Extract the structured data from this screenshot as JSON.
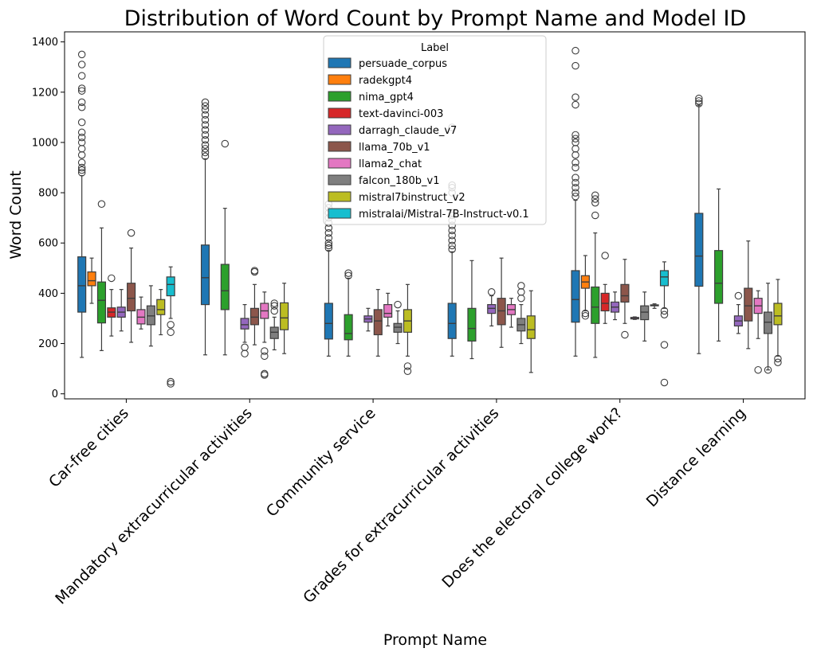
{
  "chart_data": {
    "type": "boxplot",
    "title": "Distribution of Word Count by Prompt Name and Model ID",
    "xlabel": "Prompt Name",
    "ylabel": "Word Count",
    "ylim": [
      -20,
      1440
    ],
    "yticks": [
      0,
      200,
      400,
      600,
      800,
      1000,
      1200,
      1400
    ],
    "categories": [
      "Car-free cities",
      "Mandatory extracurricular activities",
      "Community service",
      "Grades for extracurricular activities",
      "Does the electoral college work?",
      "Distance learning"
    ],
    "legend": {
      "title": "Label",
      "position": "upper-center",
      "entries": [
        {
          "name": "persuade_corpus",
          "color": "#1f77b4",
          "edge": "#114a7a"
        },
        {
          "name": "radekgpt4",
          "color": "#ff7f0e",
          "edge": "#8a4306"
        },
        {
          "name": "nima_gpt4",
          "color": "#2ca02c",
          "edge": "#175a17"
        },
        {
          "name": "text-davinci-003",
          "color": "#d62728",
          "edge": "#7a1414"
        },
        {
          "name": "darragh_claude_v7",
          "color": "#9467bd",
          "edge": "#4e3569"
        },
        {
          "name": "llama_70b_v1",
          "color": "#8c564b",
          "edge": "#4a2c26"
        },
        {
          "name": "llama2_chat",
          "color": "#e377c2",
          "edge": "#7d3f6a"
        },
        {
          "name": "falcon_180b_v1",
          "color": "#7f7f7f",
          "edge": "#454545"
        },
        {
          "name": "mistral7binstruct_v2",
          "color": "#bcbd22",
          "edge": "#646512"
        },
        {
          "name": "mistralai/Mistral-7B-Instruct-v0.1",
          "color": "#17becf",
          "edge": "#0c6670"
        }
      ]
    },
    "boxes": [
      {
        "category": 0,
        "series": 0,
        "min": 145,
        "q1": 325,
        "median": 430,
        "q3": 545,
        "max": 868,
        "outliers": [
          880,
          890,
          900,
          920,
          950,
          975,
          1000,
          1020,
          1040,
          1080,
          1140,
          1160,
          1205,
          1215,
          1265,
          1310,
          1350
        ]
      },
      {
        "category": 0,
        "series": 1,
        "min": 360,
        "q1": 430,
        "median": 450,
        "q3": 485,
        "max": 540,
        "outliers": []
      },
      {
        "category": 0,
        "series": 2,
        "min": 172,
        "q1": 282,
        "median": 372,
        "q3": 445,
        "max": 660,
        "outliers": [
          755
        ]
      },
      {
        "category": 0,
        "series": 3,
        "min": 230,
        "q1": 305,
        "median": 325,
        "q3": 342,
        "max": 415,
        "outliers": [
          460
        ]
      },
      {
        "category": 0,
        "series": 4,
        "min": 250,
        "q1": 305,
        "median": 325,
        "q3": 345,
        "max": 415,
        "outliers": []
      },
      {
        "category": 0,
        "series": 5,
        "min": 205,
        "q1": 330,
        "median": 380,
        "q3": 440,
        "max": 580,
        "outliers": [
          640
        ]
      },
      {
        "category": 0,
        "series": 6,
        "min": 258,
        "q1": 278,
        "median": 305,
        "q3": 335,
        "max": 385,
        "outliers": []
      },
      {
        "category": 0,
        "series": 7,
        "min": 190,
        "q1": 275,
        "median": 310,
        "q3": 350,
        "max": 430,
        "outliers": []
      },
      {
        "category": 0,
        "series": 8,
        "min": 235,
        "q1": 315,
        "median": 335,
        "q3": 375,
        "max": 415,
        "outliers": []
      },
      {
        "category": 0,
        "series": 9,
        "min": 300,
        "q1": 390,
        "median": 435,
        "q3": 465,
        "max": 505,
        "outliers": [
          245,
          275,
          40,
          48
        ]
      },
      {
        "category": 1,
        "series": 0,
        "min": 155,
        "q1": 355,
        "median": 462,
        "q3": 592,
        "max": 935,
        "outliers": [
          945,
          960,
          975,
          990,
          1010,
          1030,
          1050,
          1070,
          1090,
          1110,
          1130,
          1145,
          1160
        ]
      },
      {
        "category": 1,
        "series": 2,
        "min": 155,
        "q1": 335,
        "median": 410,
        "q3": 515,
        "max": 738,
        "outliers": [
          995
        ]
      },
      {
        "category": 1,
        "series": 4,
        "min": 205,
        "q1": 258,
        "median": 275,
        "q3": 300,
        "max": 355,
        "outliers": [
          160,
          185
        ]
      },
      {
        "category": 1,
        "series": 5,
        "min": 195,
        "q1": 275,
        "median": 305,
        "q3": 340,
        "max": 435,
        "outliers": [
          490,
          485
        ]
      },
      {
        "category": 1,
        "series": 6,
        "min": 205,
        "q1": 300,
        "median": 330,
        "q3": 360,
        "max": 405,
        "outliers": [
          150,
          170,
          80,
          75
        ]
      },
      {
        "category": 1,
        "series": 7,
        "min": 175,
        "q1": 220,
        "median": 245,
        "q3": 265,
        "max": 305,
        "outliers": [
          330,
          350,
          360
        ]
      },
      {
        "category": 1,
        "series": 8,
        "min": 160,
        "q1": 255,
        "median": 302,
        "q3": 362,
        "max": 440,
        "outliers": []
      },
      {
        "category": 2,
        "series": 0,
        "min": 150,
        "q1": 218,
        "median": 280,
        "q3": 360,
        "max": 570,
        "outliers": [
          580,
          590,
          600,
          620,
          640,
          660,
          680,
          700,
          720,
          740,
          755
        ]
      },
      {
        "category": 2,
        "series": 2,
        "min": 150,
        "q1": 215,
        "median": 240,
        "q3": 315,
        "max": 460,
        "outliers": [
          470,
          480
        ]
      },
      {
        "category": 2,
        "series": 4,
        "min": 250,
        "q1": 285,
        "median": 298,
        "q3": 310,
        "max": 340,
        "outliers": []
      },
      {
        "category": 2,
        "series": 5,
        "min": 150,
        "q1": 235,
        "median": 290,
        "q3": 335,
        "max": 415,
        "outliers": []
      },
      {
        "category": 2,
        "series": 6,
        "min": 270,
        "q1": 305,
        "median": 320,
        "q3": 355,
        "max": 400,
        "outliers": []
      },
      {
        "category": 2,
        "series": 7,
        "min": 200,
        "q1": 245,
        "median": 265,
        "q3": 280,
        "max": 330,
        "outliers": [
          355
        ]
      },
      {
        "category": 2,
        "series": 8,
        "min": 150,
        "q1": 245,
        "median": 290,
        "q3": 335,
        "max": 435,
        "outliers": [
          110,
          90
        ]
      },
      {
        "category": 3,
        "series": 0,
        "min": 150,
        "q1": 220,
        "median": 280,
        "q3": 360,
        "max": 565,
        "outliers": [
          575,
          590,
          610,
          630,
          650,
          670,
          690,
          710,
          720,
          800,
          820,
          830,
          1060
        ]
      },
      {
        "category": 3,
        "series": 2,
        "min": 140,
        "q1": 210,
        "median": 260,
        "q3": 340,
        "max": 530,
        "outliers": []
      },
      {
        "category": 3,
        "series": 4,
        "min": 270,
        "q1": 320,
        "median": 340,
        "q3": 355,
        "max": 390,
        "outliers": [
          405
        ]
      },
      {
        "category": 3,
        "series": 5,
        "min": 185,
        "q1": 275,
        "median": 330,
        "q3": 380,
        "max": 540,
        "outliers": []
      },
      {
        "category": 3,
        "series": 6,
        "min": 265,
        "q1": 315,
        "median": 335,
        "q3": 355,
        "max": 380,
        "outliers": []
      },
      {
        "category": 3,
        "series": 7,
        "min": 200,
        "q1": 250,
        "median": 275,
        "q3": 300,
        "max": 355,
        "outliers": [
          380,
          405,
          430
        ]
      },
      {
        "category": 3,
        "series": 8,
        "min": 85,
        "q1": 220,
        "median": 255,
        "q3": 310,
        "max": 410,
        "outliers": []
      },
      {
        "category": 4,
        "series": 0,
        "min": 150,
        "q1": 285,
        "median": 375,
        "q3": 490,
        "max": 770,
        "outliers": [
          785,
          800,
          820,
          840,
          860,
          900,
          920,
          950,
          975,
          1000,
          1015,
          1030,
          1150,
          1180,
          1305,
          1365
        ]
      },
      {
        "category": 4,
        "series": 1,
        "min": 330,
        "q1": 420,
        "median": 445,
        "q3": 470,
        "max": 550,
        "outliers": [
          310,
          320
        ]
      },
      {
        "category": 4,
        "series": 2,
        "min": 145,
        "q1": 280,
        "median": 345,
        "q3": 425,
        "max": 640,
        "outliers": [
          710,
          760,
          775,
          790
        ]
      },
      {
        "category": 4,
        "series": 3,
        "min": 280,
        "q1": 330,
        "median": 360,
        "q3": 400,
        "max": 435,
        "outliers": [
          550
        ]
      },
      {
        "category": 4,
        "series": 4,
        "min": 295,
        "q1": 325,
        "median": 345,
        "q3": 365,
        "max": 405,
        "outliers": []
      },
      {
        "category": 4,
        "series": 5,
        "min": 280,
        "q1": 365,
        "median": 390,
        "q3": 435,
        "max": 535,
        "outliers": [
          235
        ]
      },
      {
        "category": 4,
        "series": 6,
        "min": 296,
        "q1": 298,
        "median": 300,
        "q3": 304,
        "max": 306,
        "outliers": []
      },
      {
        "category": 4,
        "series": 7,
        "min": 210,
        "q1": 295,
        "median": 325,
        "q3": 350,
        "max": 405,
        "outliers": []
      },
      {
        "category": 4,
        "series": 8,
        "min": 340,
        "q1": 350,
        "median": 352,
        "q3": 354,
        "max": 358,
        "outliers": []
      },
      {
        "category": 4,
        "series": 9,
        "min": 340,
        "q1": 430,
        "median": 465,
        "q3": 490,
        "max": 525,
        "outliers": [
          330,
          315,
          195,
          45
        ]
      },
      {
        "category": 5,
        "series": 0,
        "min": 160,
        "q1": 428,
        "median": 548,
        "q3": 718,
        "max": 1148,
        "outliers": [
          1155,
          1165,
          1175
        ]
      },
      {
        "category": 5,
        "series": 2,
        "min": 210,
        "q1": 360,
        "median": 440,
        "q3": 570,
        "max": 815,
        "outliers": []
      },
      {
        "category": 5,
        "series": 4,
        "min": 240,
        "q1": 270,
        "median": 290,
        "q3": 310,
        "max": 355,
        "outliers": [
          390
        ]
      },
      {
        "category": 5,
        "series": 5,
        "min": 180,
        "q1": 290,
        "median": 350,
        "q3": 420,
        "max": 608,
        "outliers": []
      },
      {
        "category": 5,
        "series": 6,
        "min": 220,
        "q1": 320,
        "median": 350,
        "q3": 380,
        "max": 410,
        "outliers": [
          95
        ]
      },
      {
        "category": 5,
        "series": 7,
        "min": 95,
        "q1": 240,
        "median": 285,
        "q3": 325,
        "max": 440,
        "outliers": [
          95
        ]
      },
      {
        "category": 5,
        "series": 8,
        "min": 150,
        "q1": 275,
        "median": 310,
        "q3": 360,
        "max": 455,
        "outliers": [
          125,
          140
        ]
      }
    ]
  }
}
